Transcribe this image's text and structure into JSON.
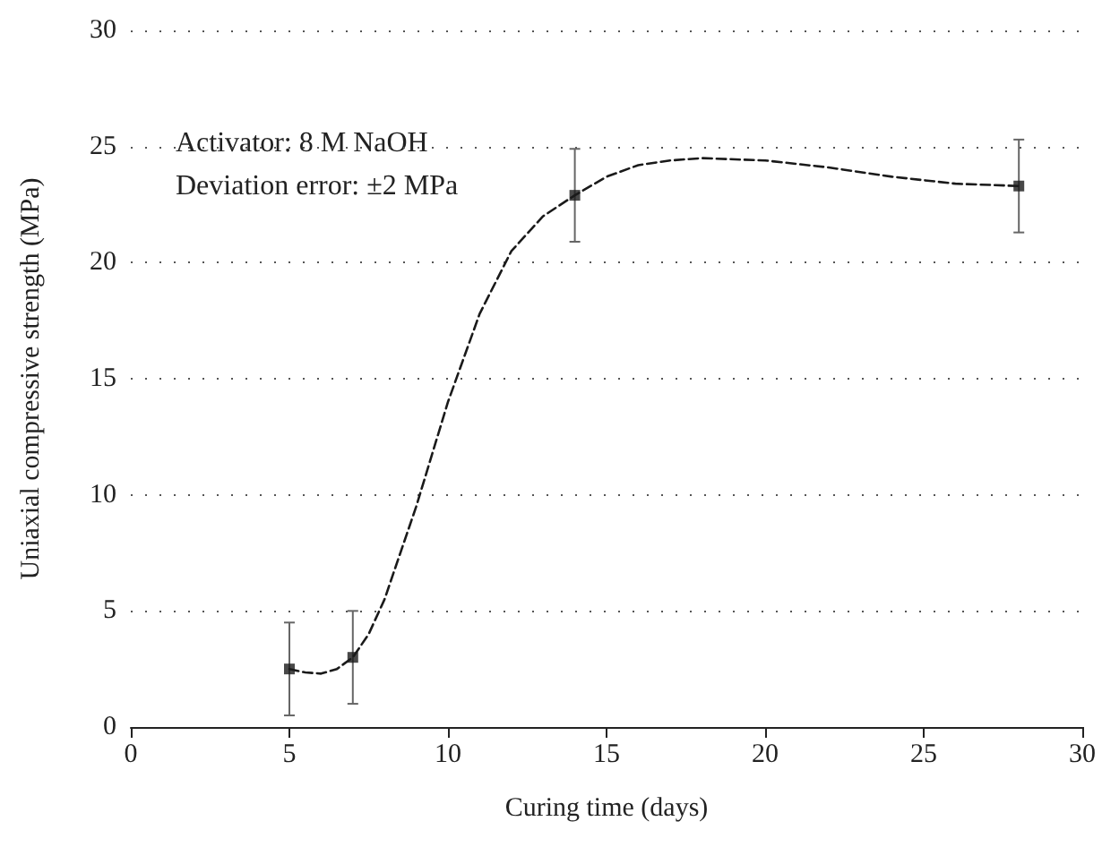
{
  "chart_data": {
    "type": "scatter",
    "xlabel": "Curing time (days)",
    "ylabel": "Uniaxial compressive strength (MPa)",
    "annotations": [
      "Activator: 8 M NaOH",
      "Deviation error: ±2 MPa"
    ],
    "xlim": [
      0,
      30
    ],
    "xticks": [
      0,
      5,
      10,
      15,
      20,
      25,
      30
    ],
    "ylim": [
      0,
      30
    ],
    "yticks": [
      0,
      5,
      10,
      15,
      20,
      25,
      30
    ],
    "grid": "y",
    "series": [
      {
        "type": "line",
        "color": "#1a1a1a",
        "line_style": "dashed",
        "marker": "none",
        "x": [
          5,
          5.5,
          6,
          6.5,
          7,
          7.5,
          8,
          9,
          10,
          11,
          12,
          13,
          14,
          15,
          16,
          17,
          18,
          20,
          22,
          24,
          26,
          28
        ],
        "values": [
          2.5,
          2.35,
          2.3,
          2.5,
          3.0,
          4.0,
          5.5,
          9.5,
          14,
          17.8,
          20.5,
          22,
          22.9,
          23.7,
          24.2,
          24.4,
          24.5,
          24.4,
          24.1,
          23.7,
          23.4,
          23.3
        ]
      },
      {
        "color": "#1a1a1a",
        "marker": "square",
        "x": [
          5,
          7,
          14,
          28
        ],
        "values": [
          2.5,
          3.0,
          22.9,
          23.3
        ],
        "errors": [
          2,
          2,
          2,
          2
        ]
      }
    ]
  }
}
